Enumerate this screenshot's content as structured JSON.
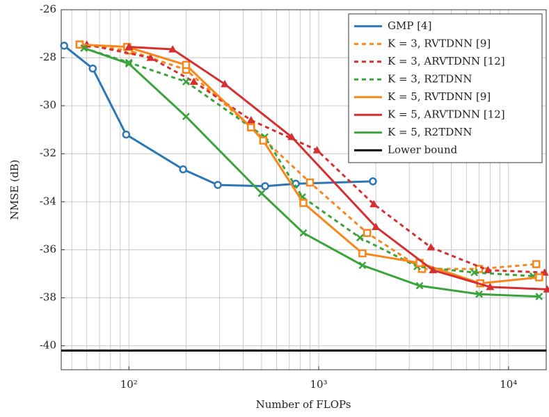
{
  "chart_data": {
    "type": "line",
    "xlabel": "Number of FLOPs",
    "ylabel": "NMSE (dB)",
    "xscale": "log",
    "xlim": [
      44,
      15800
    ],
    "ylim": [
      -41,
      -26
    ],
    "xticks": [
      {
        "value": 100,
        "label": "10²"
      },
      {
        "value": 1000,
        "label": "10³"
      },
      {
        "value": 10000,
        "label": "10⁴"
      }
    ],
    "xminorticks": [
      50,
      60,
      70,
      80,
      90,
      200,
      300,
      400,
      500,
      600,
      700,
      800,
      900,
      2000,
      3000,
      4000,
      5000,
      6000,
      7000,
      8000,
      9000
    ],
    "yticks": [
      -40,
      -38,
      -36,
      -34,
      -32,
      -30,
      -28,
      -26
    ],
    "grid": true,
    "legend": "upper right",
    "series": [
      {
        "name": "GMP [4]",
        "color": "#2b76b3",
        "dash": "solid",
        "marker": "circle",
        "x": [
          45.6,
          64.5,
          96.7,
          193,
          294,
          522,
          757,
          1930
        ],
        "values": [
          -27.5,
          -28.45,
          -31.2,
          -32.65,
          -33.3,
          -33.35,
          -33.25,
          -33.15
        ]
      },
      {
        "name": "K = 3, RVTDNN [9]",
        "color": "#f7861b",
        "dash": "dotted",
        "marker": "square",
        "x": [
          55,
          100,
          200,
          440,
          900,
          1800,
          3500,
          7000,
          14000
        ],
        "values": [
          -27.45,
          -27.7,
          -28.5,
          -30.9,
          -33.2,
          -35.3,
          -36.8,
          -36.8,
          -36.6
        ]
      },
      {
        "name": "K = 3, ARVTDNN [12]",
        "color": "#d3302f",
        "dash": "dotted",
        "marker": "triangle",
        "x": [
          60,
          130,
          220,
          440,
          980,
          1950,
          3900,
          7800,
          15500
        ],
        "values": [
          -27.45,
          -28.0,
          -29.0,
          -30.6,
          -31.85,
          -34.1,
          -35.9,
          -36.85,
          -36.95
        ]
      },
      {
        "name": "K = 3, R2TDNN",
        "color": "#3ba33c",
        "dash": "dotted",
        "marker": "cross",
        "x": [
          58,
          100,
          200,
          520,
          820,
          1650,
          3300,
          6600,
          13500
        ],
        "values": [
          -27.6,
          -28.2,
          -29.0,
          -31.3,
          -33.8,
          -35.5,
          -36.7,
          -36.95,
          -37.1
        ]
      },
      {
        "name": "K = 5, RVTDNN [9]",
        "color": "#f7861b",
        "dash": "solid",
        "marker": "square",
        "x": [
          55,
          98,
          200,
          440,
          510,
          830,
          1700,
          3400,
          7100,
          14500
        ],
        "values": [
          -27.45,
          -27.55,
          -28.3,
          -30.9,
          -31.45,
          -34.05,
          -36.15,
          -36.55,
          -37.4,
          -37.15
        ]
      },
      {
        "name": "K = 5, ARVTDNN [12]",
        "color": "#d3302f",
        "dash": "solid",
        "marker": "triangle",
        "x": [
          100,
          170,
          320,
          720,
          2000,
          4000,
          8000,
          16000
        ],
        "values": [
          -27.55,
          -27.65,
          -29.1,
          -31.3,
          -35.05,
          -36.85,
          -37.55,
          -37.65
        ]
      },
      {
        "name": "K = 5, R2TDNN",
        "color": "#3ba33c",
        "dash": "solid",
        "marker": "cross",
        "x": [
          58,
          100,
          200,
          500,
          830,
          1700,
          3400,
          7000,
          14500
        ],
        "values": [
          -27.6,
          -28.25,
          -30.45,
          -33.65,
          -35.3,
          -36.65,
          -37.5,
          -37.85,
          -37.95
        ]
      },
      {
        "name": "Lower bound",
        "color": "#000000",
        "dash": "solid",
        "marker": "none",
        "x": [
          44,
          15800
        ],
        "values": [
          -40.2,
          -40.2
        ]
      }
    ]
  }
}
